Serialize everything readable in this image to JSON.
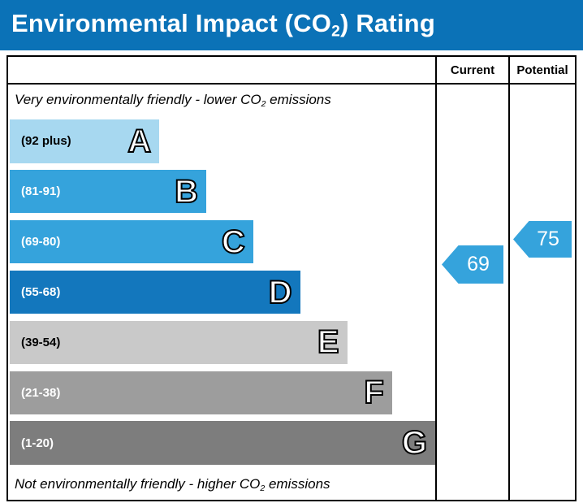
{
  "title": {
    "pre": "Environmental Impact (CO",
    "sub": "2",
    "post": ") Rating"
  },
  "header": {
    "current": "Current",
    "potential": "Potential"
  },
  "captions": {
    "top": {
      "pre": "Very environmentally friendly - lower CO",
      "sub": "2",
      "post": " emissions"
    },
    "bottom": {
      "pre": "Not environmentally friendly - higher CO",
      "sub": "2",
      "post": " emissions"
    }
  },
  "colors": {
    "title_bar": "#0b72b7",
    "border": "#000000",
    "arrow": "#35a3dc"
  },
  "bands": [
    {
      "letter": "A",
      "range": "(92 plus)",
      "color": "#a7d8f0",
      "text_color": "#000000",
      "width_pct": 35
    },
    {
      "letter": "B",
      "range": "(81-91)",
      "color": "#35a3dc",
      "text_color": "#ffffff",
      "width_pct": 46
    },
    {
      "letter": "C",
      "range": "(69-80)",
      "color": "#35a3dc",
      "text_color": "#ffffff",
      "width_pct": 57
    },
    {
      "letter": "D",
      "range": "(55-68)",
      "color": "#1377bd",
      "text_color": "#ffffff",
      "width_pct": 68
    },
    {
      "letter": "E",
      "range": "(39-54)",
      "color": "#c9c9c9",
      "text_color": "#000000",
      "width_pct": 79
    },
    {
      "letter": "F",
      "range": "(21-38)",
      "color": "#9d9d9d",
      "text_color": "#ffffff",
      "width_pct": 89.5
    },
    {
      "letter": "G",
      "range": "(1-20)",
      "color": "#7d7d7d",
      "text_color": "#ffffff",
      "width_pct": 100
    }
  ],
  "arrows": {
    "current": {
      "value": "69",
      "color": "#35a3dc"
    },
    "potential": {
      "value": "75",
      "color": "#35a3dc"
    }
  },
  "chart_data": {
    "type": "bar",
    "title": "Environmental Impact (CO2) Rating",
    "categories": [
      "A",
      "B",
      "C",
      "D",
      "E",
      "F",
      "G"
    ],
    "band_ranges": [
      "92 plus",
      "81-91",
      "69-80",
      "55-68",
      "39-54",
      "21-38",
      "1-20"
    ],
    "band_widths_pct": [
      35,
      46,
      57,
      68,
      79,
      89.5,
      100
    ],
    "band_colors": [
      "#a7d8f0",
      "#35a3dc",
      "#35a3dc",
      "#1377bd",
      "#c9c9c9",
      "#9d9d9d",
      "#7d7d7d"
    ],
    "series": [
      {
        "name": "Current",
        "values": [
          69
        ]
      },
      {
        "name": "Potential",
        "values": [
          75
        ]
      }
    ],
    "annotations": [
      "Very environmentally friendly - lower CO2 emissions",
      "Not environmentally friendly - higher CO2 emissions"
    ],
    "xlabel": "",
    "ylabel": "",
    "grid": false,
    "legend_position": "top-right-columns"
  }
}
